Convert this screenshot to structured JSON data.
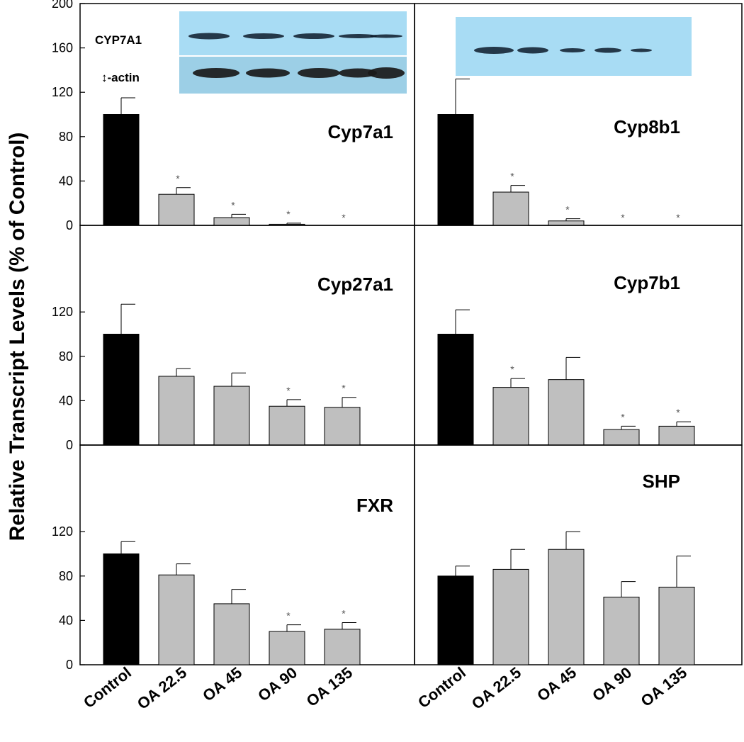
{
  "figure": {
    "ylabel": "Relative Transcript Levels (% of Control)",
    "yticks": [
      0,
      40,
      80,
      120,
      160,
      200
    ],
    "yticks_lower": [
      0,
      40,
      80,
      120
    ],
    "categories": [
      "Control",
      "OA 22.5",
      "OA 45",
      "OA 90",
      "OA 135"
    ],
    "bar_colors": [
      "#000000",
      "#bfbfbf",
      "#bfbfbf",
      "#bfbfbf",
      "#bfbfbf"
    ],
    "significance_marker": "*",
    "blot": {
      "label_top": "CYP7A1",
      "label_bottom": "↕-actin",
      "background_color": "#a8dcf4",
      "band_color": "#0d1b2a"
    }
  },
  "chart_data": [
    {
      "type": "bar",
      "title": "Cyp7a1",
      "categories": [
        "Control",
        "OA 22.5",
        "OA 45",
        "OA 90",
        "OA 135"
      ],
      "values": [
        100,
        28,
        7,
        1,
        0
      ],
      "errors": [
        15,
        6,
        3,
        1,
        0
      ],
      "significant": [
        false,
        true,
        true,
        true,
        true
      ],
      "ylim": [
        0,
        200
      ]
    },
    {
      "type": "bar",
      "title": "Cyp8b1",
      "categories": [
        "Control",
        "OA 22.5",
        "OA 45",
        "OA 90",
        "OA 135"
      ],
      "values": [
        100,
        30,
        4,
        0,
        0
      ],
      "errors": [
        32,
        6,
        2,
        0,
        0
      ],
      "significant": [
        false,
        true,
        true,
        true,
        true
      ],
      "ylim": [
        0,
        200
      ]
    },
    {
      "type": "bar",
      "title": "Cyp27a1",
      "categories": [
        "Control",
        "OA 22.5",
        "OA 45",
        "OA 90",
        "OA 135"
      ],
      "values": [
        100,
        62,
        53,
        35,
        34
      ],
      "errors": [
        27,
        7,
        12,
        6,
        9
      ],
      "significant": [
        false,
        false,
        false,
        true,
        true
      ],
      "ylim": [
        0,
        160
      ]
    },
    {
      "type": "bar",
      "title": "Cyp7b1",
      "categories": [
        "Control",
        "OA 22.5",
        "OA 45",
        "OA 90",
        "OA 135"
      ],
      "values": [
        100,
        52,
        59,
        14,
        17
      ],
      "errors": [
        22,
        8,
        20,
        3,
        4
      ],
      "significant": [
        false,
        true,
        false,
        true,
        true
      ],
      "ylim": [
        0,
        160
      ]
    },
    {
      "type": "bar",
      "title": "FXR",
      "categories": [
        "Control",
        "OA 22.5",
        "OA 45",
        "OA 90",
        "OA 135"
      ],
      "values": [
        100,
        81,
        55,
        30,
        32
      ],
      "errors": [
        11,
        10,
        13,
        6,
        6
      ],
      "significant": [
        false,
        false,
        false,
        true,
        true
      ],
      "ylim": [
        0,
        160
      ]
    },
    {
      "type": "bar",
      "title": "SHP",
      "categories": [
        "Control",
        "OA 22.5",
        "OA 45",
        "OA 90",
        "OA 135"
      ],
      "values": [
        80,
        86,
        104,
        61,
        70
      ],
      "errors": [
        9,
        18,
        16,
        14,
        28
      ],
      "significant": [
        false,
        false,
        false,
        false,
        false
      ],
      "ylim": [
        0,
        160
      ]
    }
  ]
}
